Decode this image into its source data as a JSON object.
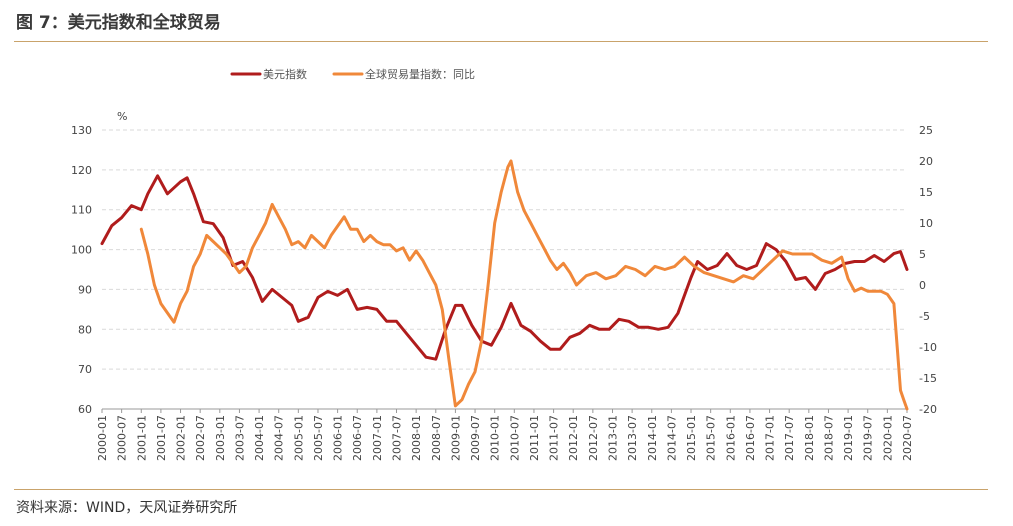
{
  "header": {
    "title": "图 7：美元指数和全球贸易"
  },
  "footer": {
    "source": "资料来源：WIND，天风证券研究所"
  },
  "colors": {
    "usd": "#b01c1c",
    "trade": "#f0883a",
    "grid": "#d9d9d9",
    "rule": "#c9a36b"
  },
  "chart_data": {
    "type": "line",
    "y_unit_label": "%",
    "y_left": {
      "range": [
        60,
        130
      ],
      "ticks": [
        60,
        70,
        80,
        90,
        100,
        110,
        120,
        130
      ]
    },
    "y_right": {
      "range": [
        -20,
        25
      ],
      "ticks": [
        -20,
        -15,
        -10,
        -5,
        0,
        5,
        10,
        15,
        20,
        25
      ]
    },
    "x_range": [
      "2000-01",
      "2020-07"
    ],
    "x_ticks": [
      "2000-01",
      "2000-07",
      "2001-01",
      "2001-07",
      "2002-01",
      "2002-07",
      "2003-01",
      "2003-07",
      "2004-01",
      "2004-07",
      "2005-01",
      "2005-07",
      "2006-01",
      "2006-07",
      "2007-01",
      "2007-07",
      "2008-01",
      "2008-07",
      "2009-01",
      "2009-07",
      "2010-01",
      "2010-07",
      "2011-01",
      "2011-07",
      "2012-01",
      "2012-07",
      "2013-01",
      "2013-07",
      "2014-01",
      "2014-07",
      "2015-01",
      "2015-07",
      "2016-01",
      "2016-07",
      "2017-01",
      "2017-07",
      "2018-01",
      "2018-07",
      "2019-01",
      "2019-07",
      "2020-01",
      "2020-07"
    ],
    "legend_position": "top",
    "grid": true,
    "series": [
      {
        "name": "美元指数",
        "axis": "left",
        "color": "#b01c1c",
        "points": [
          [
            "2000-01",
            101.5
          ],
          [
            "2000-04",
            106
          ],
          [
            "2000-07",
            108
          ],
          [
            "2000-10",
            111
          ],
          [
            "2001-01",
            110
          ],
          [
            "2001-03",
            114
          ],
          [
            "2001-06",
            118.5
          ],
          [
            "2001-09",
            114
          ],
          [
            "2002-01",
            117
          ],
          [
            "2002-03",
            118
          ],
          [
            "2002-05",
            114
          ],
          [
            "2002-08",
            107
          ],
          [
            "2002-11",
            106.5
          ],
          [
            "2003-02",
            103
          ],
          [
            "2003-05",
            96
          ],
          [
            "2003-08",
            97
          ],
          [
            "2003-11",
            93
          ],
          [
            "2004-02",
            87
          ],
          [
            "2004-05",
            90
          ],
          [
            "2004-08",
            88
          ],
          [
            "2004-11",
            86
          ],
          [
            "2005-01",
            82
          ],
          [
            "2005-04",
            83
          ],
          [
            "2005-07",
            88
          ],
          [
            "2005-10",
            89.5
          ],
          [
            "2006-01",
            88.5
          ],
          [
            "2006-04",
            90
          ],
          [
            "2006-07",
            85
          ],
          [
            "2006-10",
            85.5
          ],
          [
            "2007-01",
            85
          ],
          [
            "2007-04",
            82
          ],
          [
            "2007-07",
            82
          ],
          [
            "2007-10",
            79
          ],
          [
            "2008-01",
            76
          ],
          [
            "2008-04",
            73
          ],
          [
            "2008-07",
            72.5
          ],
          [
            "2008-10",
            80
          ],
          [
            "2009-01",
            86
          ],
          [
            "2009-03",
            86
          ],
          [
            "2009-06",
            81
          ],
          [
            "2009-09",
            77
          ],
          [
            "2009-12",
            76
          ],
          [
            "2010-03",
            80.5
          ],
          [
            "2010-06",
            86.5
          ],
          [
            "2010-09",
            81
          ],
          [
            "2010-12",
            79.5
          ],
          [
            "2011-03",
            77
          ],
          [
            "2011-06",
            75
          ],
          [
            "2011-09",
            75
          ],
          [
            "2011-12",
            78
          ],
          [
            "2012-03",
            79
          ],
          [
            "2012-06",
            81
          ],
          [
            "2012-09",
            80
          ],
          [
            "2012-12",
            80
          ],
          [
            "2013-03",
            82.5
          ],
          [
            "2013-06",
            82
          ],
          [
            "2013-09",
            80.5
          ],
          [
            "2013-12",
            80.5
          ],
          [
            "2014-03",
            80
          ],
          [
            "2014-06",
            80.5
          ],
          [
            "2014-09",
            84
          ],
          [
            "2015-01",
            93
          ],
          [
            "2015-03",
            97
          ],
          [
            "2015-06",
            95
          ],
          [
            "2015-09",
            96
          ],
          [
            "2015-12",
            99
          ],
          [
            "2016-03",
            96
          ],
          [
            "2016-06",
            95
          ],
          [
            "2016-09",
            96
          ],
          [
            "2016-12",
            101.5
          ],
          [
            "2017-03",
            100
          ],
          [
            "2017-06",
            97
          ],
          [
            "2017-09",
            92.5
          ],
          [
            "2017-12",
            93
          ],
          [
            "2018-03",
            90
          ],
          [
            "2018-06",
            94
          ],
          [
            "2018-09",
            95
          ],
          [
            "2018-12",
            96.5
          ],
          [
            "2019-03",
            97
          ],
          [
            "2019-06",
            97
          ],
          [
            "2019-09",
            98.5
          ],
          [
            "2019-12",
            97
          ],
          [
            "2020-03",
            99
          ],
          [
            "2020-05",
            99.5
          ],
          [
            "2020-07",
            95
          ]
        ]
      },
      {
        "name": "全球贸易量指数：同比",
        "axis": "right",
        "color": "#f0883a",
        "points": [
          [
            "2001-01",
            9
          ],
          [
            "2001-03",
            5
          ],
          [
            "2001-05",
            0
          ],
          [
            "2001-07",
            -3
          ],
          [
            "2001-09",
            -4.5
          ],
          [
            "2001-11",
            -6
          ],
          [
            "2002-01",
            -3
          ],
          [
            "2002-03",
            -1
          ],
          [
            "2002-05",
            3
          ],
          [
            "2002-07",
            5
          ],
          [
            "2002-09",
            8
          ],
          [
            "2002-11",
            7
          ],
          [
            "2003-01",
            6
          ],
          [
            "2003-03",
            5
          ],
          [
            "2003-05",
            3.5
          ],
          [
            "2003-07",
            2
          ],
          [
            "2003-09",
            3
          ],
          [
            "2003-11",
            6
          ],
          [
            "2004-01",
            8
          ],
          [
            "2004-03",
            10
          ],
          [
            "2004-05",
            13
          ],
          [
            "2004-07",
            11
          ],
          [
            "2004-09",
            9
          ],
          [
            "2004-11",
            6.5
          ],
          [
            "2005-01",
            7
          ],
          [
            "2005-03",
            6
          ],
          [
            "2005-05",
            8
          ],
          [
            "2005-07",
            7
          ],
          [
            "2005-09",
            6
          ],
          [
            "2005-11",
            8
          ],
          [
            "2006-01",
            9.5
          ],
          [
            "2006-03",
            11
          ],
          [
            "2006-05",
            9
          ],
          [
            "2006-07",
            9
          ],
          [
            "2006-09",
            7
          ],
          [
            "2006-11",
            8
          ],
          [
            "2007-01",
            7
          ],
          [
            "2007-03",
            6.5
          ],
          [
            "2007-05",
            6.5
          ],
          [
            "2007-07",
            5.5
          ],
          [
            "2007-09",
            6
          ],
          [
            "2007-11",
            4
          ],
          [
            "2008-01",
            5.5
          ],
          [
            "2008-03",
            4
          ],
          [
            "2008-05",
            2
          ],
          [
            "2008-07",
            0
          ],
          [
            "2008-09",
            -4
          ],
          [
            "2008-11",
            -12
          ],
          [
            "2009-01",
            -19.5
          ],
          [
            "2009-03",
            -18.5
          ],
          [
            "2009-05",
            -16
          ],
          [
            "2009-07",
            -14
          ],
          [
            "2009-09",
            -9
          ],
          [
            "2009-11",
            0
          ],
          [
            "2010-01",
            10
          ],
          [
            "2010-03",
            15
          ],
          [
            "2010-05",
            19
          ],
          [
            "2010-06",
            20
          ],
          [
            "2010-08",
            15
          ],
          [
            "2010-10",
            12
          ],
          [
            "2010-12",
            10
          ],
          [
            "2011-02",
            8
          ],
          [
            "2011-04",
            6
          ],
          [
            "2011-06",
            4
          ],
          [
            "2011-08",
            2.5
          ],
          [
            "2011-10",
            3.5
          ],
          [
            "2011-12",
            2
          ],
          [
            "2012-02",
            0
          ],
          [
            "2012-05",
            1.5
          ],
          [
            "2012-08",
            2
          ],
          [
            "2012-11",
            1
          ],
          [
            "2013-02",
            1.5
          ],
          [
            "2013-05",
            3
          ],
          [
            "2013-08",
            2.5
          ],
          [
            "2013-11",
            1.5
          ],
          [
            "2014-02",
            3
          ],
          [
            "2014-05",
            2.5
          ],
          [
            "2014-08",
            3
          ],
          [
            "2014-11",
            4.5
          ],
          [
            "2015-02",
            3
          ],
          [
            "2015-05",
            2
          ],
          [
            "2015-08",
            1.5
          ],
          [
            "2015-11",
            1
          ],
          [
            "2016-02",
            0.5
          ],
          [
            "2016-05",
            1.5
          ],
          [
            "2016-08",
            1
          ],
          [
            "2016-11",
            2.5
          ],
          [
            "2017-02",
            4
          ],
          [
            "2017-05",
            5.5
          ],
          [
            "2017-08",
            5
          ],
          [
            "2017-11",
            5
          ],
          [
            "2018-02",
            5
          ],
          [
            "2018-05",
            4
          ],
          [
            "2018-08",
            3.5
          ],
          [
            "2018-11",
            4.5
          ],
          [
            "2019-01",
            1
          ],
          [
            "2019-03",
            -1
          ],
          [
            "2019-05",
            -0.5
          ],
          [
            "2019-07",
            -1
          ],
          [
            "2019-09",
            -1
          ],
          [
            "2019-11",
            -1
          ],
          [
            "2020-01",
            -1.5
          ],
          [
            "2020-03",
            -3
          ],
          [
            "2020-04",
            -10
          ],
          [
            "2020-05",
            -17
          ],
          [
            "2020-06",
            -18.5
          ],
          [
            "2020-07",
            -20
          ]
        ]
      }
    ]
  }
}
